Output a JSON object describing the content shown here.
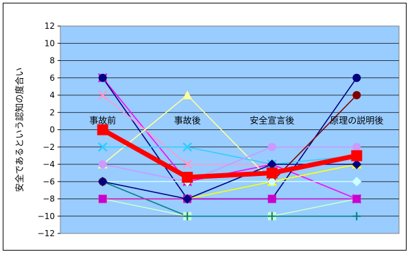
{
  "chart_data": {
    "type": "line",
    "title": "",
    "xlabel": "",
    "ylabel": "安全であるという認知の度合い",
    "categories": [
      "事故前",
      "事故後",
      "安全宣言後",
      "原理の説明後"
    ],
    "ylim": [
      -12,
      12
    ],
    "ytick_step": 2,
    "yticks": [
      "12",
      "10",
      "8",
      "6",
      "4",
      "2",
      "0",
      "−2",
      "−4",
      "−6",
      "−8",
      "−10",
      "−12"
    ],
    "grid": true,
    "legend": "none",
    "plot_background": "#99ccff",
    "series": [
      {
        "color": "#ff00ff",
        "marker": "x",
        "values": [
          6,
          -6,
          -4,
          -8
        ]
      },
      {
        "color": "#000080",
        "marker": "circle",
        "values": [
          6,
          -8,
          -8,
          6
        ]
      },
      {
        "color": "#ff99cc",
        "marker": "x",
        "values": [
          4,
          -4,
          -4,
          -4
        ]
      },
      {
        "color": "#ffff99",
        "marker": "triangle",
        "values": [
          -4,
          4,
          -6,
          -4
        ]
      },
      {
        "color": "#33ccff",
        "marker": "x",
        "values": [
          -2,
          -2,
          -4,
          -3
        ]
      },
      {
        "color": "#cc99ff",
        "marker": "circle",
        "values": [
          -4,
          -6,
          -2,
          -2
        ]
      },
      {
        "color": "#800000",
        "marker": "circle",
        "values": [
          -6,
          -6,
          -6,
          4
        ]
      },
      {
        "color": "#ccffcc",
        "marker": "square",
        "values": [
          -8,
          -10,
          -10,
          -8
        ]
      },
      {
        "color": "#008080",
        "marker": "plus",
        "values": [
          -6,
          -10,
          -10,
          -10
        ]
      },
      {
        "color": "#ffff00",
        "marker": "triangle",
        "values": [
          -8,
          -8,
          -6,
          -4
        ]
      },
      {
        "color": "#cc00cc",
        "marker": "square",
        "values": [
          -8,
          -8,
          -8,
          -8
        ]
      },
      {
        "color": "#ccffff",
        "marker": "diamond",
        "values": [
          -6,
          -6,
          -6,
          -6
        ]
      },
      {
        "color": "#000080",
        "marker": "diamond",
        "values": [
          -6,
          -8,
          -4,
          -4
        ]
      },
      {
        "color": "#ff0000",
        "marker": "square",
        "thick": true,
        "values": [
          0,
          -5.5,
          -5,
          -3
        ]
      }
    ]
  }
}
